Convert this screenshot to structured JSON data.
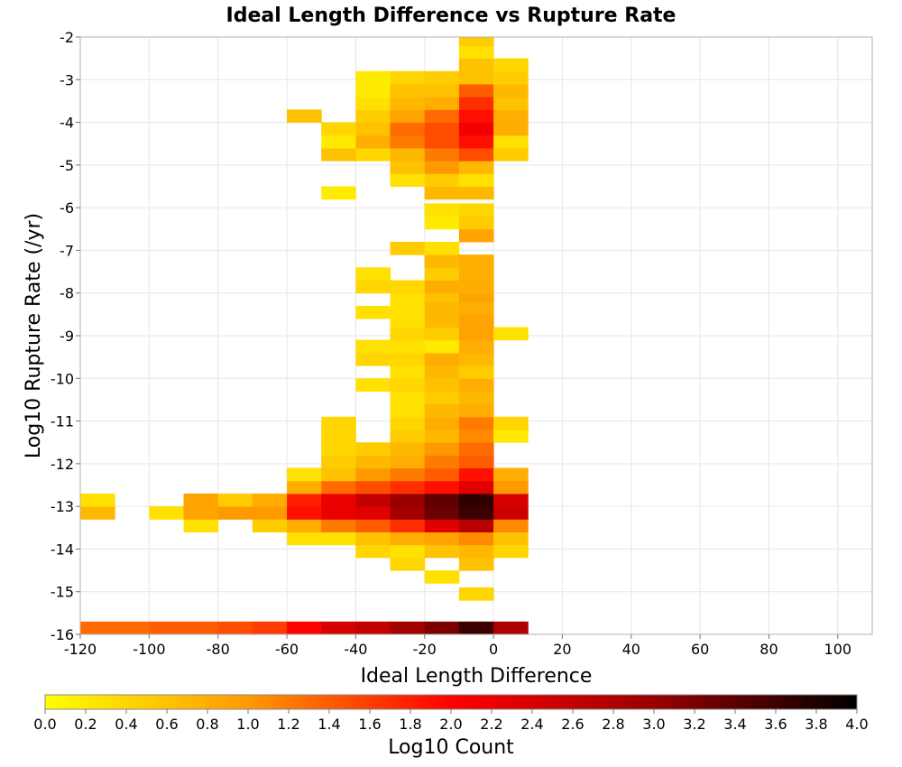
{
  "chart_data": {
    "type": "heatmap",
    "title": "Ideal Length Difference vs Rupture Rate",
    "xlabel": "Ideal Length Difference",
    "ylabel": "Log10 Rupture Rate (/yr)",
    "colorbar_label": "Log10 Count",
    "xlim": [
      -120,
      110
    ],
    "ylim": [
      -16,
      -2
    ],
    "x_ticks": [
      "-120",
      "-100",
      "-80",
      "-60",
      "-40",
      "-20",
      "0",
      "20",
      "40",
      "60",
      "80",
      "100"
    ],
    "y_ticks": [
      "-2",
      "-3",
      "-4",
      "-5",
      "-6",
      "-7",
      "-8",
      "-9",
      "-10",
      "-11",
      "-12",
      "-13",
      "-14",
      "-15",
      "-16"
    ],
    "colorbar_ticks": [
      "0.0",
      "0.2",
      "0.4",
      "0.6",
      "0.8",
      "1.0",
      "1.2",
      "1.4",
      "1.6",
      "1.8",
      "2.0",
      "2.2",
      "2.4",
      "2.6",
      "2.8",
      "3.0",
      "3.2",
      "3.4",
      "3.6",
      "3.8",
      "4.0"
    ],
    "color_range": [
      0,
      4
    ],
    "colormap": [
      "#ffff00",
      "#ff9900",
      "#ff0000",
      "#990000",
      "#000000"
    ],
    "grid": true,
    "bin_width_x": 10,
    "bin_height_y": 0.3,
    "columns": [
      {
        "x": -120,
        "cells": [
          [
            -16.0,
            1.3
          ],
          [
            -13.3,
            0.7
          ],
          [
            -13.0,
            0.3
          ]
        ]
      },
      {
        "x": -110,
        "cells": [
          [
            -16.0,
            1.3
          ]
        ]
      },
      {
        "x": -100,
        "cells": [
          [
            -16.0,
            1.4
          ],
          [
            -13.3,
            0.3
          ]
        ]
      },
      {
        "x": -90,
        "cells": [
          [
            -16.0,
            1.4
          ],
          [
            -13.6,
            0.3
          ],
          [
            -13.3,
            0.9
          ],
          [
            -13.0,
            0.9
          ]
        ]
      },
      {
        "x": -80,
        "cells": [
          [
            -16.0,
            1.5
          ],
          [
            -13.3,
            1.0
          ],
          [
            -13.0,
            0.5
          ]
        ]
      },
      {
        "x": -70,
        "cells": [
          [
            -16.0,
            1.6
          ],
          [
            -13.6,
            0.5
          ],
          [
            -13.3,
            1.0
          ],
          [
            -13.0,
            0.8
          ]
        ]
      },
      {
        "x": -60,
        "cells": [
          [
            -16.0,
            2.0
          ],
          [
            -13.9,
            0.3
          ],
          [
            -13.6,
            0.8
          ],
          [
            -13.3,
            1.9
          ],
          [
            -13.0,
            1.8
          ],
          [
            -12.7,
            0.8
          ],
          [
            -12.4,
            0.3
          ],
          [
            -4.0,
            0.6
          ]
        ]
      },
      {
        "x": -50,
        "cells": [
          [
            -16.0,
            2.4
          ],
          [
            -13.9,
            0.3
          ],
          [
            -13.6,
            1.2
          ],
          [
            -13.3,
            2.2
          ],
          [
            -13.0,
            2.2
          ],
          [
            -12.7,
            1.3
          ],
          [
            -12.4,
            0.6
          ],
          [
            -12.1,
            0.5
          ],
          [
            -11.8,
            0.4
          ],
          [
            -11.5,
            0.4
          ],
          [
            -11.2,
            0.4
          ],
          [
            -5.8,
            0.2
          ],
          [
            -4.9,
            0.6
          ],
          [
            -4.6,
            0.2
          ],
          [
            -4.3,
            0.4
          ]
        ]
      },
      {
        "x": -40,
        "cells": [
          [
            -16.0,
            2.6
          ],
          [
            -14.2,
            0.4
          ],
          [
            -13.9,
            0.6
          ],
          [
            -13.6,
            1.4
          ],
          [
            -13.3,
            2.3
          ],
          [
            -13.0,
            2.6
          ],
          [
            -12.7,
            1.5
          ],
          [
            -12.4,
            1.0
          ],
          [
            -12.1,
            0.7
          ],
          [
            -11.8,
            0.5
          ],
          [
            -10.3,
            0.3
          ],
          [
            -9.7,
            0.4
          ],
          [
            -9.4,
            0.3
          ],
          [
            -8.6,
            0.3
          ],
          [
            -8.0,
            0.4
          ],
          [
            -7.7,
            0.3
          ],
          [
            -4.9,
            0.4
          ],
          [
            -4.6,
            0.8
          ],
          [
            -4.3,
            0.6
          ],
          [
            -4.0,
            0.5
          ],
          [
            -3.7,
            0.3
          ],
          [
            -3.4,
            0.2
          ],
          [
            -3.1,
            0.2
          ]
        ]
      },
      {
        "x": -30,
        "cells": [
          [
            -16.0,
            2.9
          ],
          [
            -14.5,
            0.4
          ],
          [
            -14.2,
            0.3
          ],
          [
            -13.9,
            0.8
          ],
          [
            -13.6,
            1.7
          ],
          [
            -13.3,
            2.9
          ],
          [
            -13.0,
            3.0
          ],
          [
            -12.7,
            1.7
          ],
          [
            -12.4,
            1.2
          ],
          [
            -12.1,
            0.8
          ],
          [
            -11.8,
            0.7
          ],
          [
            -11.5,
            0.5
          ],
          [
            -11.2,
            0.4
          ],
          [
            -10.9,
            0.3
          ],
          [
            -10.6,
            0.3
          ],
          [
            -10.3,
            0.4
          ],
          [
            -10.0,
            0.3
          ],
          [
            -9.7,
            0.4
          ],
          [
            -9.4,
            0.3
          ],
          [
            -9.1,
            0.4
          ],
          [
            -8.8,
            0.3
          ],
          [
            -8.5,
            0.3
          ],
          [
            -8.2,
            0.3
          ],
          [
            -8.0,
            0.4
          ],
          [
            -7.1,
            0.5
          ],
          [
            -5.5,
            0.3
          ],
          [
            -5.2,
            0.6
          ],
          [
            -4.9,
            0.7
          ],
          [
            -4.6,
            1.2
          ],
          [
            -4.3,
            1.3
          ],
          [
            -4.0,
            0.9
          ],
          [
            -3.7,
            0.7
          ],
          [
            -3.4,
            0.6
          ],
          [
            -3.1,
            0.4
          ]
        ]
      },
      {
        "x": -20,
        "cells": [
          [
            -16.0,
            3.2
          ],
          [
            -14.8,
            0.3
          ],
          [
            -14.2,
            0.6
          ],
          [
            -13.9,
            0.9
          ],
          [
            -13.6,
            2.3
          ],
          [
            -13.3,
            3.3
          ],
          [
            -13.0,
            3.4
          ],
          [
            -12.7,
            1.9
          ],
          [
            -12.4,
            1.4
          ],
          [
            -12.1,
            1.2
          ],
          [
            -11.8,
            1.0
          ],
          [
            -11.5,
            0.7
          ],
          [
            -11.2,
            0.8
          ],
          [
            -10.9,
            0.7
          ],
          [
            -10.6,
            0.5
          ],
          [
            -10.3,
            0.6
          ],
          [
            -10.0,
            0.7
          ],
          [
            -9.7,
            0.8
          ],
          [
            -9.4,
            0.2
          ],
          [
            -9.1,
            0.5
          ],
          [
            -8.8,
            0.7
          ],
          [
            -8.5,
            0.7
          ],
          [
            -8.2,
            0.6
          ],
          [
            -8.0,
            0.8
          ],
          [
            -7.7,
            0.5
          ],
          [
            -7.4,
            0.7
          ],
          [
            -7.1,
            0.3
          ],
          [
            -6.5,
            0.2
          ],
          [
            -6.2,
            0.3
          ],
          [
            -5.8,
            0.7
          ],
          [
            -5.5,
            0.5
          ],
          [
            -5.2,
            1.0
          ],
          [
            -4.9,
            1.2
          ],
          [
            -4.6,
            1.5
          ],
          [
            -4.3,
            1.5
          ],
          [
            -4.0,
            1.3
          ],
          [
            -3.7,
            0.8
          ],
          [
            -3.4,
            0.6
          ],
          [
            -3.1,
            0.5
          ]
        ]
      },
      {
        "x": -10,
        "cells": [
          [
            -16.0,
            3.6
          ],
          [
            -15.2,
            0.4
          ],
          [
            -14.5,
            0.6
          ],
          [
            -14.2,
            0.7
          ],
          [
            -13.9,
            1.1
          ],
          [
            -13.6,
            2.7
          ],
          [
            -13.3,
            3.6
          ],
          [
            -13.0,
            3.7
          ],
          [
            -12.7,
            2.3
          ],
          [
            -12.4,
            1.9
          ],
          [
            -12.1,
            1.4
          ],
          [
            -11.8,
            1.3
          ],
          [
            -11.5,
            1.1
          ],
          [
            -11.2,
            1.2
          ],
          [
            -10.9,
            0.8
          ],
          [
            -10.6,
            0.7
          ],
          [
            -10.3,
            0.8
          ],
          [
            -10.0,
            0.5
          ],
          [
            -9.7,
            0.7
          ],
          [
            -9.4,
            0.8
          ],
          [
            -9.1,
            0.9
          ],
          [
            -8.8,
            0.9
          ],
          [
            -8.5,
            0.8
          ],
          [
            -8.2,
            0.9
          ],
          [
            -8.0,
            0.8
          ],
          [
            -7.7,
            0.8
          ],
          [
            -7.4,
            0.8
          ],
          [
            -6.8,
            0.9
          ],
          [
            -6.5,
            0.5
          ],
          [
            -6.2,
            0.4
          ],
          [
            -5.8,
            0.7
          ],
          [
            -5.5,
            0.3
          ],
          [
            -5.2,
            0.7
          ],
          [
            -4.9,
            1.5
          ],
          [
            -4.6,
            1.9
          ],
          [
            -4.3,
            2.1
          ],
          [
            -4.0,
            1.9
          ],
          [
            -3.7,
            1.7
          ],
          [
            -3.4,
            1.4
          ],
          [
            -3.1,
            0.6
          ],
          [
            -2.8,
            0.6
          ],
          [
            -2.5,
            0.3
          ],
          [
            -2.2,
            0.5
          ]
        ]
      },
      {
        "x": 0,
        "cells": [
          [
            -16.0,
            2.8
          ],
          [
            -14.2,
            0.4
          ],
          [
            -13.9,
            0.6
          ],
          [
            -13.6,
            1.1
          ],
          [
            -13.3,
            2.5
          ],
          [
            -13.0,
            2.4
          ],
          [
            -12.7,
            1.0
          ],
          [
            -12.4,
            0.8
          ],
          [
            -11.5,
            0.2
          ],
          [
            -11.2,
            0.4
          ],
          [
            -9.1,
            0.3
          ],
          [
            -4.9,
            0.5
          ],
          [
            -4.6,
            0.3
          ],
          [
            -4.3,
            0.8
          ],
          [
            -4.0,
            0.8
          ],
          [
            -3.7,
            0.6
          ],
          [
            -3.4,
            0.7
          ],
          [
            -3.1,
            0.5
          ],
          [
            -2.8,
            0.4
          ]
        ]
      }
    ]
  }
}
